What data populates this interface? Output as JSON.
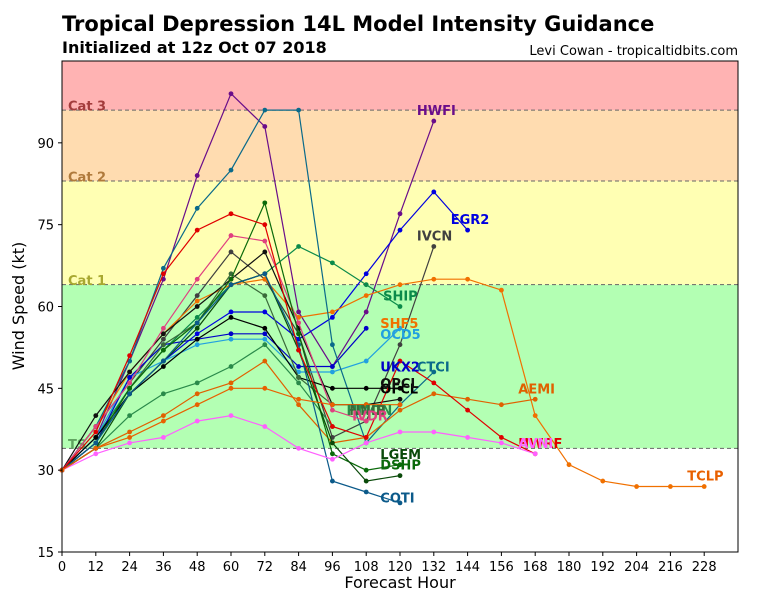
{
  "chart_data": {
    "type": "line",
    "title": "Tropical Depression 14L Model Intensity Guidance",
    "subtitle": "Initialized at 12z Oct 07 2018",
    "credit": "Levi Cowan - tropicaltidbits.com",
    "xlabel": "Forecast Hour",
    "ylabel": "Wind Speed (kt)",
    "xlim": [
      0,
      240
    ],
    "ylim": [
      15,
      105
    ],
    "xticks": [
      0,
      12,
      24,
      36,
      48,
      60,
      72,
      84,
      96,
      108,
      120,
      132,
      144,
      156,
      168,
      180,
      192,
      204,
      216,
      228
    ],
    "yticks": [
      15,
      30,
      45,
      60,
      75,
      90
    ],
    "bands": [
      {
        "name": "TS",
        "from": 34,
        "to": 64,
        "color": "#b3ffb3",
        "label_y": 35
      },
      {
        "name": "Cat 1",
        "from": 64,
        "to": 83,
        "color": "#ffffb3",
        "label_y": 65
      },
      {
        "name": "Cat 2",
        "from": 83,
        "to": 96,
        "color": "#ffdcb0",
        "label_y": 84
      },
      {
        "name": "Cat 3",
        "from": 96,
        "to": 105,
        "color": "#ffb3b3",
        "label_y": 97
      }
    ],
    "band_label_colors": {
      "TS": "#5fa35f",
      "Cat 1": "#a8a830",
      "Cat 2": "#b07a3c",
      "Cat 3": "#a33c3c"
    },
    "series": [
      {
        "name": "HWFI",
        "color": "#6a0d8a",
        "x": [
          0,
          12,
          24,
          36,
          48,
          60,
          72,
          84,
          96,
          108,
          120,
          132
        ],
        "y": [
          30,
          36,
          50,
          65,
          84,
          99,
          93,
          59,
          49,
          59,
          77,
          94
        ],
        "label_x": 126,
        "label_y": 96
      },
      {
        "name": "EGR2",
        "color": "#0000e0",
        "x": [
          0,
          12,
          24,
          36,
          48,
          60,
          72,
          84,
          96,
          108,
          120,
          132,
          144
        ],
        "y": [
          30,
          35,
          44,
          50,
          55,
          59,
          59,
          54,
          58,
          66,
          74,
          81,
          74
        ],
        "label_x": 138,
        "label_y": 76
      },
      {
        "name": "IVCN",
        "color": "#404040",
        "x": [
          0,
          12,
          24,
          36,
          48,
          60,
          72,
          84,
          96,
          108,
          120,
          132
        ],
        "y": [
          30,
          38,
          46,
          54,
          62,
          70,
          65,
          55,
          36,
          39,
          53,
          71
        ],
        "label_x": 126,
        "label_y": 73
      },
      {
        "name": "SHIP",
        "color": "#0b8a4a",
        "x": [
          0,
          12,
          24,
          36,
          48,
          60,
          72,
          84,
          96,
          108,
          120
        ],
        "y": [
          30,
          36,
          45,
          52,
          58,
          64,
          66,
          71,
          68,
          64,
          60
        ],
        "label_x": 114,
        "label_y": 62
      },
      {
        "name": "SHF5",
        "color": "#f07000",
        "x": [
          0,
          12,
          24,
          36,
          48,
          60,
          72,
          84,
          96,
          108,
          120,
          132,
          144,
          156,
          168,
          180,
          192,
          204,
          216,
          228
        ],
        "y": [
          30,
          38,
          48,
          55,
          61,
          64,
          65,
          58,
          59,
          62,
          64,
          65,
          65,
          63,
          40,
          31,
          28,
          27,
          27,
          27
        ],
        "label_x": 113,
        "label_y": 57
      },
      {
        "name": "OCD5",
        "color": "#22a0e0",
        "x": [
          0,
          12,
          24,
          36,
          48,
          60,
          72,
          84,
          96,
          108,
          120
        ],
        "y": [
          30,
          36,
          47,
          50,
          53,
          54,
          54,
          48,
          48,
          50,
          56
        ],
        "label_x": 113,
        "label_y": 55
      },
      {
        "name": "UKX2",
        "color": "#0000c8",
        "x": [
          0,
          12,
          24,
          36,
          48,
          60,
          72,
          84,
          96,
          108
        ],
        "y": [
          30,
          35,
          47,
          53,
          54,
          55,
          55,
          49,
          49,
          56
        ],
        "label_x": 113,
        "label_y": 49
      },
      {
        "name": "CTCI",
        "color": "#0a6a8a",
        "x": [
          0,
          12,
          24,
          36,
          48,
          60,
          72,
          84,
          96,
          108,
          120,
          132
        ],
        "y": [
          30,
          38,
          50,
          67,
          78,
          85,
          96,
          96,
          53,
          35,
          42,
          48
        ],
        "label_x": 126,
        "label_y": 49
      },
      {
        "name": "OFCL",
        "color": "#000000",
        "x": [
          0,
          12,
          24,
          36,
          48,
          60,
          72,
          84,
          96,
          108,
          120
        ],
        "y": [
          30,
          36,
          44,
          49,
          54,
          58,
          56,
          47,
          45,
          45,
          45
        ],
        "label_x": 113,
        "label_y": 45
      },
      {
        "name": "OPCL",
        "color": "#101010",
        "x": [
          0,
          12,
          24,
          36,
          48,
          60,
          72,
          84,
          96,
          108,
          120
        ],
        "y": [
          30,
          40,
          48,
          55,
          60,
          65,
          70,
          56,
          42,
          42,
          43
        ],
        "label_x": 113,
        "label_y": 46
      },
      {
        "name": "AEMI",
        "color": "#e06000",
        "x": [
          0,
          12,
          24,
          36,
          48,
          60,
          72,
          84,
          96,
          108,
          120,
          132,
          144,
          156,
          168
        ],
        "y": [
          30,
          34,
          37,
          40,
          44,
          46,
          50,
          42,
          35,
          36,
          41,
          44,
          43,
          42,
          43
        ],
        "label_x": 162,
        "label_y": 45
      },
      {
        "name": "HMON",
        "color": "#2a8a4a",
        "x": [
          0,
          12,
          24,
          36,
          48,
          60,
          72,
          84,
          96
        ],
        "y": [
          30,
          34,
          40,
          44,
          46,
          49,
          53,
          46,
          38
        ],
        "label_x": 101,
        "label_y": 41
      },
      {
        "name": "NNIB",
        "color": "#3a6a3a",
        "x": [
          0,
          12,
          24,
          36,
          48,
          60,
          72,
          84,
          96
        ],
        "y": [
          30,
          35,
          45,
          53,
          57,
          66,
          62,
          47,
          42
        ],
        "label_x": 102,
        "label_y": 41
      },
      {
        "name": "IVDR",
        "color": "#e04080",
        "x": [
          0,
          12,
          24,
          36,
          48,
          60,
          72,
          84,
          96,
          108
        ],
        "y": [
          30,
          38,
          46,
          56,
          65,
          73,
          72,
          57,
          41,
          39
        ],
        "label_x": 103,
        "label_y": 40
      },
      {
        "name": "DSHP",
        "color": "#0a6a0a",
        "x": [
          0,
          12,
          24,
          36,
          48,
          60,
          72,
          84,
          96,
          108,
          120
        ],
        "y": [
          30,
          35,
          45,
          52,
          57,
          65,
          79,
          55,
          33,
          30,
          31
        ],
        "label_x": 113,
        "label_y": 31
      },
      {
        "name": "LGEM",
        "color": "#0a4a0a",
        "x": [
          0,
          12,
          24,
          36,
          48,
          60,
          72,
          84,
          96,
          108,
          120
        ],
        "y": [
          30,
          34,
          44,
          50,
          56,
          64,
          66,
          52,
          35,
          28,
          29
        ],
        "label_x": 113,
        "label_y": 33
      },
      {
        "name": "COTI",
        "color": "#0b5a8a",
        "x": [
          0,
          12,
          24,
          36,
          48,
          60,
          72,
          84,
          96,
          108,
          120
        ],
        "y": [
          30,
          35,
          44,
          50,
          57,
          64,
          66,
          53,
          28,
          26,
          24
        ],
        "label_x": 113,
        "label_y": 25
      },
      {
        "name": "HWRF",
        "color": "#e00000",
        "x": [
          0,
          12,
          24,
          36,
          48,
          60,
          72,
          84,
          96,
          108,
          120,
          132,
          144,
          156,
          168
        ],
        "y": [
          30,
          37,
          51,
          66,
          74,
          77,
          75,
          52,
          38,
          36,
          50,
          46,
          41,
          36,
          33
        ],
        "label_x": 162,
        "label_y": 35
      },
      {
        "name": "AVNI",
        "color": "#ff60ff",
        "x": [
          0,
          12,
          24,
          36,
          48,
          60,
          72,
          84,
          96,
          108,
          120,
          132,
          144,
          156,
          168
        ],
        "y": [
          30,
          33,
          35,
          36,
          39,
          40,
          38,
          34,
          32,
          35,
          37,
          37,
          36,
          35,
          33
        ],
        "label_x": 162,
        "label_y": 35
      },
      {
        "name": "TCLP",
        "color": "#e86000",
        "x": [
          0,
          12,
          24,
          36,
          48,
          60,
          72,
          84,
          96,
          108,
          120
        ],
        "y": [
          30,
          34,
          36,
          39,
          42,
          45,
          45,
          43,
          42,
          42,
          42
        ],
        "label_x": 222,
        "label_y": 29
      }
    ],
    "labels_drawn": [
      {
        "name": "HWFI",
        "x": 126,
        "y": 96
      },
      {
        "name": "EGR2",
        "x": 138,
        "y": 76
      },
      {
        "name": "IVCN",
        "x": 126,
        "y": 73
      },
      {
        "name": "SHIP",
        "x": 114,
        "y": 62
      },
      {
        "name": "SHF5",
        "x": 113,
        "y": 57
      },
      {
        "name": "OCD5",
        "x": 113,
        "y": 55
      },
      {
        "name": "UKX2",
        "x": 113,
        "y": 49
      },
      {
        "name": "CTCI",
        "x": 126,
        "y": 49
      },
      {
        "name": "OPCL",
        "x": 113,
        "y": 46
      },
      {
        "name": "OFCL",
        "x": 113,
        "y": 45
      },
      {
        "name": "AEMI",
        "x": 162,
        "y": 45
      },
      {
        "name": "HMON",
        "x": 101,
        "y": 41
      },
      {
        "name": "NNIB",
        "x": 102,
        "y": 41
      },
      {
        "name": "IVDR",
        "x": 103,
        "y": 40
      },
      {
        "name": "LGEM",
        "x": 113,
        "y": 33
      },
      {
        "name": "DSHP",
        "x": 113,
        "y": 31
      },
      {
        "name": "COTI",
        "x": 113,
        "y": 25
      },
      {
        "name": "HWRF",
        "x": 162,
        "y": 35
      },
      {
        "name": "AVNI",
        "x": 162,
        "y": 35
      },
      {
        "name": "TCLP",
        "x": 222,
        "y": 29
      }
    ]
  }
}
